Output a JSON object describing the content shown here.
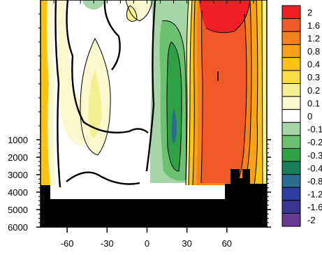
{
  "chart_data": {
    "type": "contour",
    "title": "",
    "xlabel": "",
    "ylabel": "",
    "x_ticks": [
      {
        "value": -60,
        "label": "-60"
      },
      {
        "value": -30,
        "label": "-30"
      },
      {
        "value": 0,
        "label": "0"
      },
      {
        "value": 30,
        "label": "30"
      },
      {
        "value": 60,
        "label": "60"
      }
    ],
    "xlim": [
      -80,
      90
    ],
    "y_ticks": [
      {
        "value": 1000,
        "label": "1000"
      },
      {
        "value": 2000,
        "label": "2000"
      },
      {
        "value": 3000,
        "label": "3000"
      },
      {
        "value": 4000,
        "label": "4000"
      },
      {
        "value": 5000,
        "label": "5000"
      },
      {
        "value": 6000,
        "label": "6000"
      }
    ],
    "ylim": [
      0,
      6000
    ],
    "y_scale": "nonlinear (depth, stretched near surface)",
    "legend_placement": "right",
    "colorbar": [
      {
        "label": "2",
        "color": "#ee1f25"
      },
      {
        "label": "1.6",
        "color": "#f05a28"
      },
      {
        "label": "1.2",
        "color": "#f58220"
      },
      {
        "label": "0.8",
        "color": "#f9a11b"
      },
      {
        "label": "0.4",
        "color": "#fcc315"
      },
      {
        "label": "0.3",
        "color": "#f8de45"
      },
      {
        "label": "0.2",
        "color": "#f4ef91"
      },
      {
        "label": "0.1",
        "color": "#f9f8cf"
      },
      {
        "label": "0",
        "color": "#ffffff"
      },
      {
        "label": "-0.1",
        "color": "#a6d6a8"
      },
      {
        "label": "-0.2",
        "color": "#6cc071"
      },
      {
        "label": "-0.3",
        "color": "#2fa046"
      },
      {
        "label": "-0.4",
        "color": "#1a7d5c"
      },
      {
        "label": "-0.8",
        "color": "#2c6d8f"
      },
      {
        "label": "-1.2",
        "color": "#2c3f9f"
      },
      {
        "label": "-1.6",
        "color": "#3b3593"
      },
      {
        "label": "-2",
        "color": "#6a3a93"
      }
    ],
    "regions": [
      {
        "name": "weak-positive-south",
        "color": "#f4ef91",
        "x_center": -40,
        "value_level": "0.2"
      },
      {
        "name": "negative-band",
        "color": "#2fa046",
        "x_center": 18,
        "value_level": "-0.3"
      },
      {
        "name": "strong-positive-north",
        "color": "#f05a28",
        "x_center": 50,
        "value_level": "1.6"
      },
      {
        "name": "max-positive-surface",
        "color": "#ee1f25",
        "x_center": 45,
        "value_level": "2"
      }
    ]
  }
}
